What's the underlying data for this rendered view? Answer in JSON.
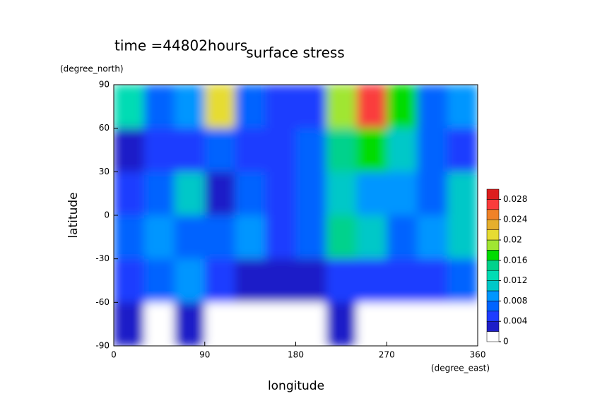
{
  "chart_data": {
    "type": "contour",
    "title": "surface stress",
    "subtitle": "time =44802hours",
    "x_label": "longitude",
    "y_label": "latitude",
    "x_unit": "(degree_east)",
    "y_unit": "(degree_north)",
    "xlim": [
      0,
      360
    ],
    "ylim": [
      -90,
      90
    ],
    "xticks": [
      0,
      90,
      180,
      270,
      360
    ],
    "yticks": [
      -90,
      -60,
      -30,
      0,
      30,
      60,
      90
    ],
    "lon": [
      15,
      45,
      75,
      105,
      135,
      165,
      195,
      225,
      255,
      285,
      315,
      345
    ],
    "lat": [
      75,
      45,
      15,
      -15,
      -45,
      -75
    ],
    "z": [
      [
        0.012,
        0.006,
        0.008,
        0.02,
        0.006,
        0.004,
        0.005,
        0.018,
        0.026,
        0.016,
        0.006,
        0.008
      ],
      [
        0.002,
        0.005,
        0.004,
        0.006,
        0.004,
        0.005,
        0.006,
        0.014,
        0.016,
        0.01,
        0.006,
        0.004
      ],
      [
        0.004,
        0.006,
        0.01,
        0.003,
        0.006,
        0.004,
        0.006,
        0.01,
        0.008,
        0.008,
        0.006,
        0.01
      ],
      [
        0.006,
        0.008,
        0.006,
        0.006,
        0.008,
        0.005,
        0.006,
        0.014,
        0.01,
        0.006,
        0.008,
        0.01
      ],
      [
        0.004,
        0.006,
        0.008,
        0.004,
        0.002,
        0.002,
        0.003,
        0.004,
        0.004,
        0.004,
        0.004,
        0.006
      ],
      [
        0.002,
        0.001,
        0.002,
        0.001,
        0.001,
        0.001,
        0.001,
        0.003,
        0,
        0,
        0,
        0
      ]
    ],
    "levels": [
      0,
      0.002,
      0.004,
      0.006,
      0.008,
      0.01,
      0.012,
      0.014,
      0.016,
      0.018,
      0.02,
      0.022,
      0.024,
      0.026,
      0.028
    ],
    "colors": [
      "#ffffff",
      "#1e1ec8",
      "#1e3cff",
      "#0064ff",
      "#0096ff",
      "#00c8c8",
      "#00dcb4",
      "#00d28c",
      "#00dc00",
      "#a0e632",
      "#e6dc32",
      "#e6af2d",
      "#f08228",
      "#fa3c3c",
      "#dc1e1e"
    ],
    "cticks": [
      0,
      0.004,
      0.008,
      0.012,
      0.016,
      0.02,
      0.024,
      0.028
    ]
  }
}
